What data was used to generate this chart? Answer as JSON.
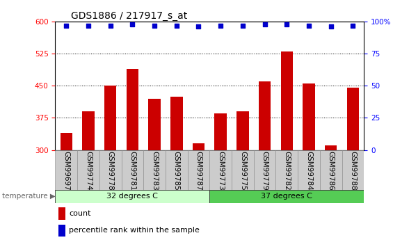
{
  "title": "GDS1886 / 217917_s_at",
  "categories": [
    "GSM99697",
    "GSM99774",
    "GSM99778",
    "GSM99781",
    "GSM99783",
    "GSM99785",
    "GSM99787",
    "GSM99773",
    "GSM99775",
    "GSM99779",
    "GSM99782",
    "GSM99784",
    "GSM99786",
    "GSM99788"
  ],
  "count_values": [
    340,
    390,
    450,
    490,
    420,
    425,
    315,
    385,
    390,
    460,
    530,
    455,
    310,
    445
  ],
  "percentile_values": [
    97,
    97,
    97,
    98,
    97,
    97,
    96,
    97,
    97,
    98,
    98,
    97,
    96,
    97
  ],
  "bar_color": "#cc0000",
  "dot_color": "#0000cc",
  "ylim_left": [
    300,
    600
  ],
  "ylim_right": [
    0,
    100
  ],
  "yticks_left": [
    300,
    375,
    450,
    525,
    600
  ],
  "yticks_right": [
    0,
    25,
    50,
    75,
    100
  ],
  "group1_label": "32 degrees C",
  "group2_label": "37 degrees C",
  "group1_color": "#ccffcc",
  "group2_color": "#55cc55",
  "group1_count": 7,
  "group2_count": 7,
  "legend_count_label": "count",
  "legend_percentile_label": "percentile rank within the sample",
  "temp_label": "temperature",
  "xtick_bg_color": "#cccccc",
  "grid_color": "#000000",
  "title_fontsize": 10,
  "tick_label_fontsize": 7.5
}
